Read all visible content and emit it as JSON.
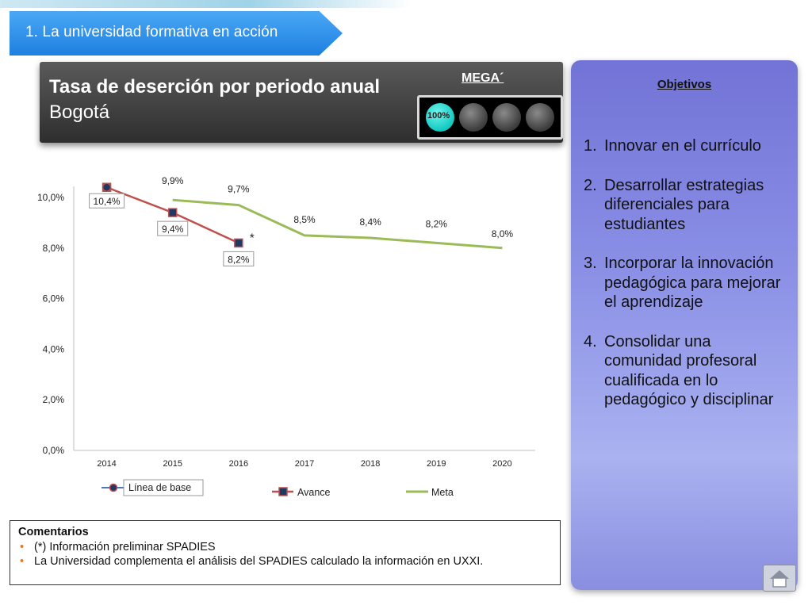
{
  "section": {
    "label": "1. La universidad formativa en acción"
  },
  "header": {
    "title": "Tasa de deserción por periodo anual",
    "subtitle": "Bogotá",
    "mega_label": "MEGA´",
    "indicator": {
      "active_lights": 1,
      "total_lights": 4,
      "percent_label": "100%"
    }
  },
  "colors": {
    "avance": "#c0504d",
    "meta": "#9bbb59",
    "marker_fill": "#1f3864",
    "banner": "#2f8ee8",
    "objectives_bg": "#7f84dd"
  },
  "objectives": {
    "title": "Objetivos",
    "items": [
      {
        "num": "1.",
        "text": "Innovar en el currículo"
      },
      {
        "num": "2.",
        "text": "Desarrollar estrategias diferenciales para estudiantes"
      },
      {
        "num": "3.",
        "text": "Incorporar la innovación pedagógica para mejorar el aprendizaje"
      },
      {
        "num": "4.",
        "text": "Consolidar una comunidad profesoral cualificada en lo pedagógico y disciplinar"
      }
    ]
  },
  "chart_data": {
    "type": "line",
    "categories": [
      "2014",
      "2015",
      "2016",
      "2017",
      "2018",
      "2019",
      "2020"
    ],
    "ylim": [
      0,
      10
    ],
    "yticks": [
      "0,0%",
      "2,0%",
      "4,0%",
      "6,0%",
      "8,0%",
      "10,0%"
    ],
    "grid": false,
    "legend_position": "bottom",
    "series": [
      {
        "name": "Línea de base",
        "values": [
          10.4,
          null,
          null,
          null,
          null,
          null,
          null
        ],
        "labels": [
          "10,4%",
          "",
          "",
          "",
          "",
          "",
          ""
        ]
      },
      {
        "name": "Avance",
        "values": [
          10.4,
          9.4,
          8.2,
          null,
          null,
          null,
          null
        ],
        "labels": [
          "",
          "9,4%",
          "8,2%",
          "",
          "",
          "",
          ""
        ]
      },
      {
        "name": "Meta",
        "values": [
          null,
          9.9,
          9.7,
          8.5,
          8.4,
          8.2,
          8.0
        ],
        "labels": [
          "",
          "9,9%",
          "9,7%",
          "8,5%",
          "8,4%",
          "8,2%",
          "8,0%"
        ]
      }
    ],
    "annotation": "*"
  },
  "comments": {
    "title": "Comentarios",
    "items": [
      "(*) Información preliminar SPADIES",
      "La Universidad complementa el análisis del SPADIES calculado la información en UXXI."
    ]
  }
}
